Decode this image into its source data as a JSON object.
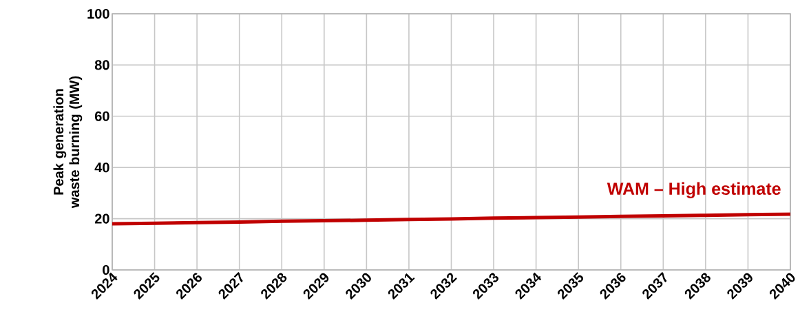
{
  "chart_data": {
    "type": "line",
    "ylabel": "Peak generation waste burning (MW)",
    "x": [
      2024,
      2025,
      2026,
      2027,
      2028,
      2029,
      2030,
      2031,
      2032,
      2033,
      2034,
      2035,
      2036,
      2037,
      2038,
      2039,
      2040
    ],
    "series": [
      {
        "name": "WAM – High estimate",
        "color": "#c00000",
        "values": [
          18.0,
          18.2,
          18.5,
          18.7,
          19.0,
          19.2,
          19.4,
          19.7,
          19.9,
          20.2,
          20.4,
          20.6,
          20.9,
          21.1,
          21.3,
          21.6,
          21.8
        ]
      }
    ],
    "xlim": [
      2024,
      2040
    ],
    "xticks": [
      2024,
      2025,
      2026,
      2027,
      2028,
      2029,
      2030,
      2031,
      2032,
      2033,
      2034,
      2035,
      2036,
      2037,
      2038,
      2039,
      2040
    ],
    "ylim": [
      0,
      100
    ],
    "yticks": [
      0,
      20,
      40,
      60,
      80,
      100
    ],
    "grid": true,
    "legend": false,
    "marker": "none",
    "line_style": "solid"
  }
}
